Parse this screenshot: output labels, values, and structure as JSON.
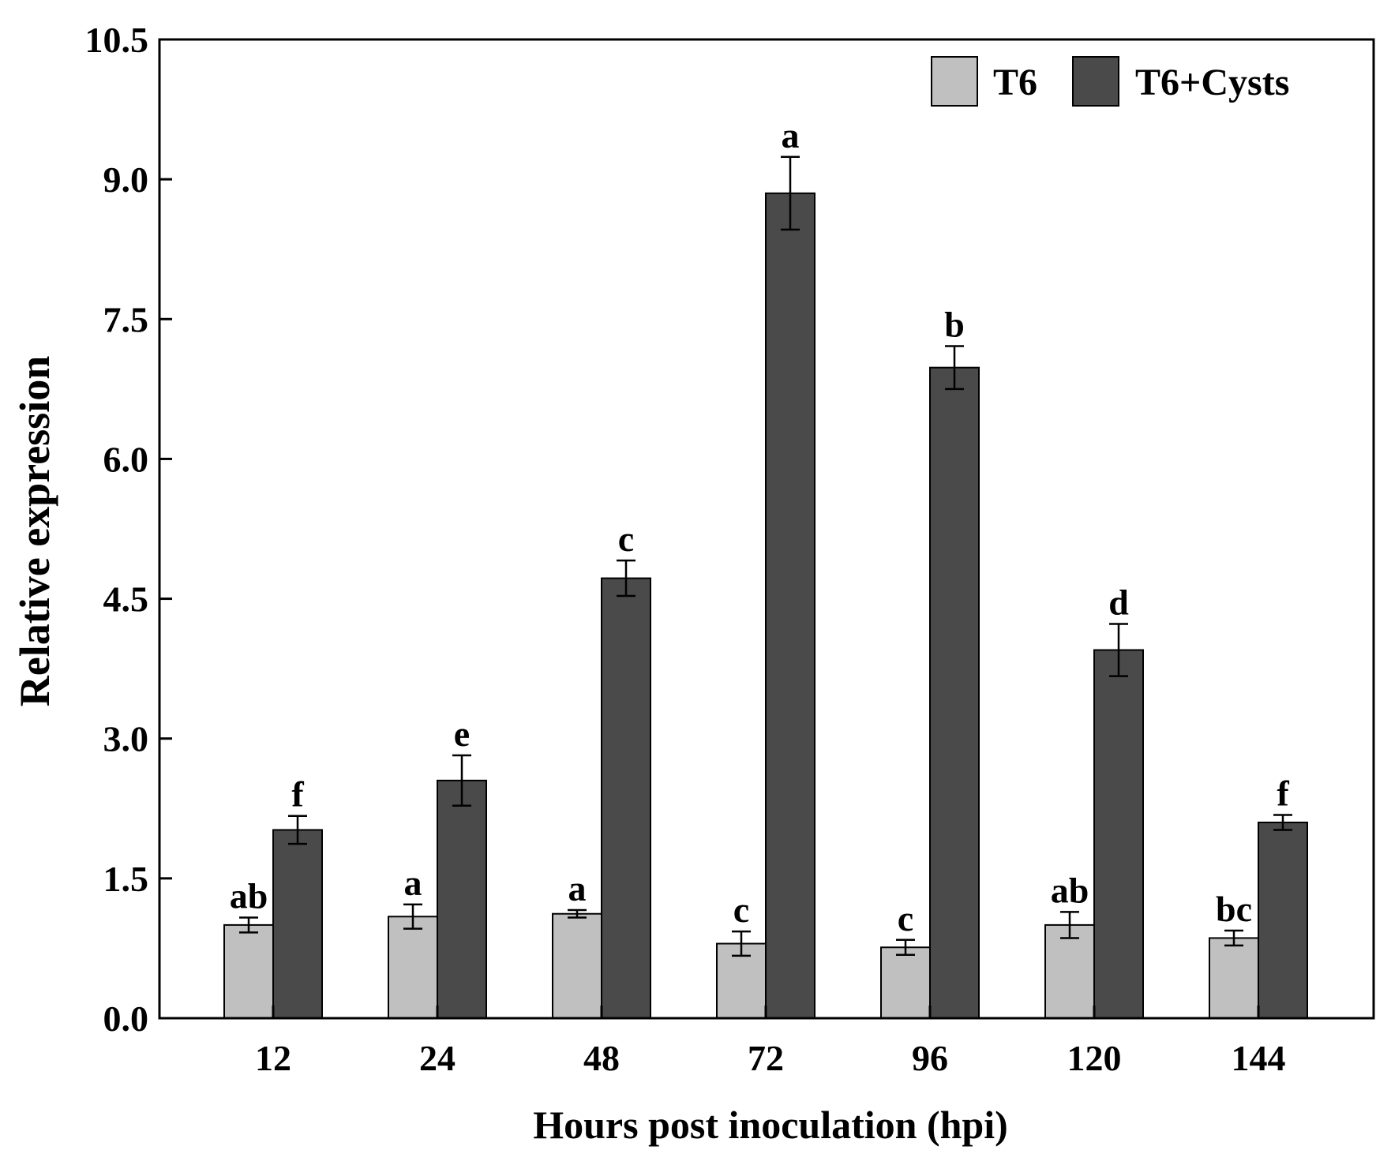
{
  "chart_data": {
    "type": "bar",
    "xlabel": "Hours post inoculation (hpi)",
    "ylabel": "Relative expression",
    "ylim": [
      0,
      10.5
    ],
    "yticks": [
      "0.0",
      "1.5",
      "3.0",
      "4.5",
      "6.0",
      "7.5",
      "9.0",
      "10.5"
    ],
    "categories": [
      "12",
      "24",
      "48",
      "72",
      "96",
      "120",
      "144"
    ],
    "legend_position": "top-right",
    "series": [
      {
        "name": "T6",
        "color": "#c0c0c0",
        "values": [
          1.0,
          1.09,
          1.12,
          0.8,
          0.76,
          1.0,
          0.86
        ],
        "errors": [
          0.08,
          0.13,
          0.04,
          0.13,
          0.08,
          0.14,
          0.08
        ],
        "letters": [
          "ab",
          "a",
          "a",
          "c",
          "c",
          "ab",
          "bc"
        ]
      },
      {
        "name": "T6+Cysts",
        "color": "#4a4a4a",
        "values": [
          2.02,
          2.55,
          4.72,
          8.85,
          6.98,
          3.95,
          2.1
        ],
        "errors": [
          0.15,
          0.27,
          0.19,
          0.39,
          0.23,
          0.28,
          0.08
        ],
        "letters": [
          "f",
          "e",
          "c",
          "a",
          "b",
          "d",
          "f"
        ]
      }
    ]
  }
}
